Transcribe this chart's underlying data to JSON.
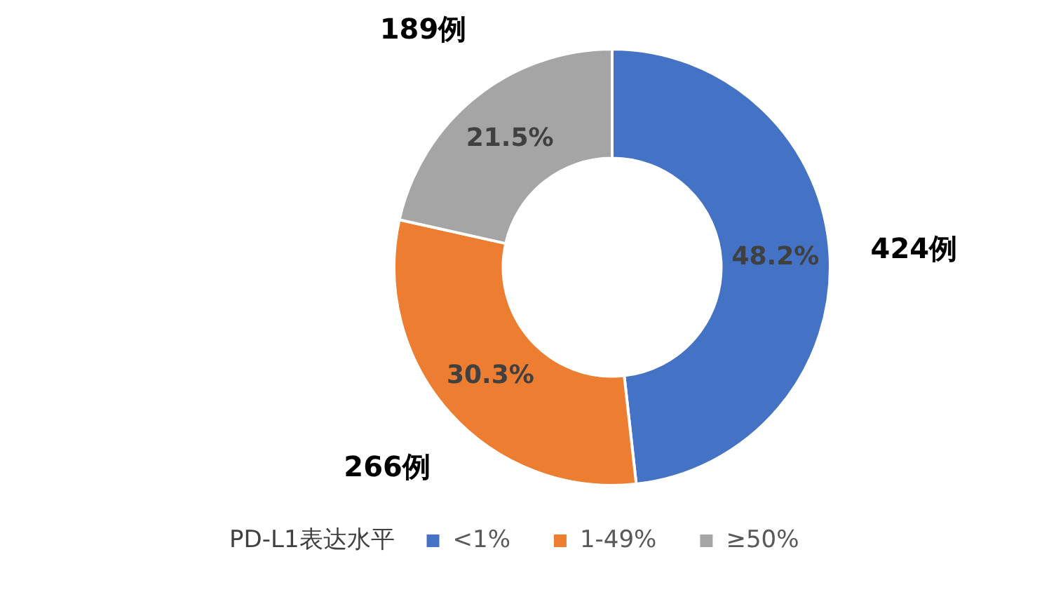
{
  "chart_data": {
    "type": "donut",
    "categories": [
      "<1%",
      "1-49%",
      "≥50%"
    ],
    "values": [
      424,
      266,
      189
    ],
    "colors": [
      "#4472c4",
      "#ed7d31",
      "#a5a5a5"
    ],
    "value_labels": [
      "424例",
      "266例",
      "189例"
    ],
    "annotations": [
      {
        "text": "48.2%",
        "x": "<1%"
      },
      {
        "text": "30.3%",
        "x": "1-49%"
      },
      {
        "text": "21.5%",
        "x": "≥50%"
      }
    ],
    "legend_title": "PD-L1表达水平",
    "legend": "bottom"
  }
}
